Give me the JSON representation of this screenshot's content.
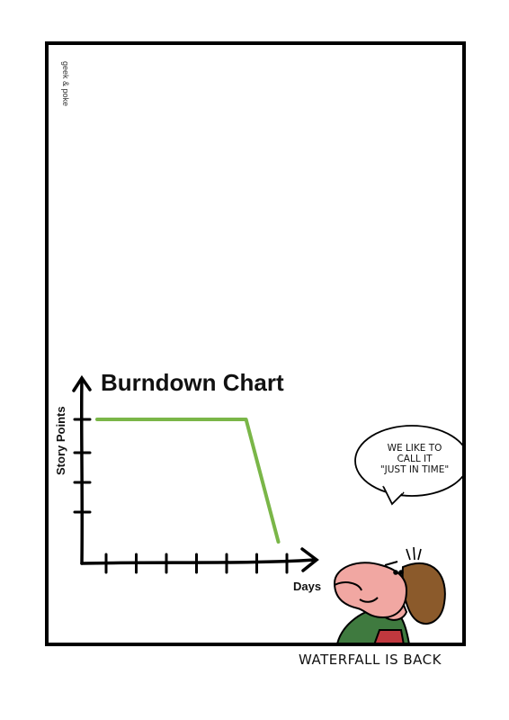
{
  "credit": "geek & poke",
  "chart_data": {
    "type": "line",
    "title": "Burndown Chart",
    "xlabel": "Days",
    "ylabel": "Story Points",
    "series": [
      {
        "x": [
          0,
          6,
          7.3
        ],
        "values": [
          4,
          4,
          0
        ]
      }
    ],
    "line_color": "#7ab648",
    "grid": false
  },
  "speech_bubble": {
    "lines": [
      "WE LIKE TO",
      "CALL IT",
      "\"JUST IN TIME\""
    ]
  },
  "caption": "WATERFALL IS BACK"
}
